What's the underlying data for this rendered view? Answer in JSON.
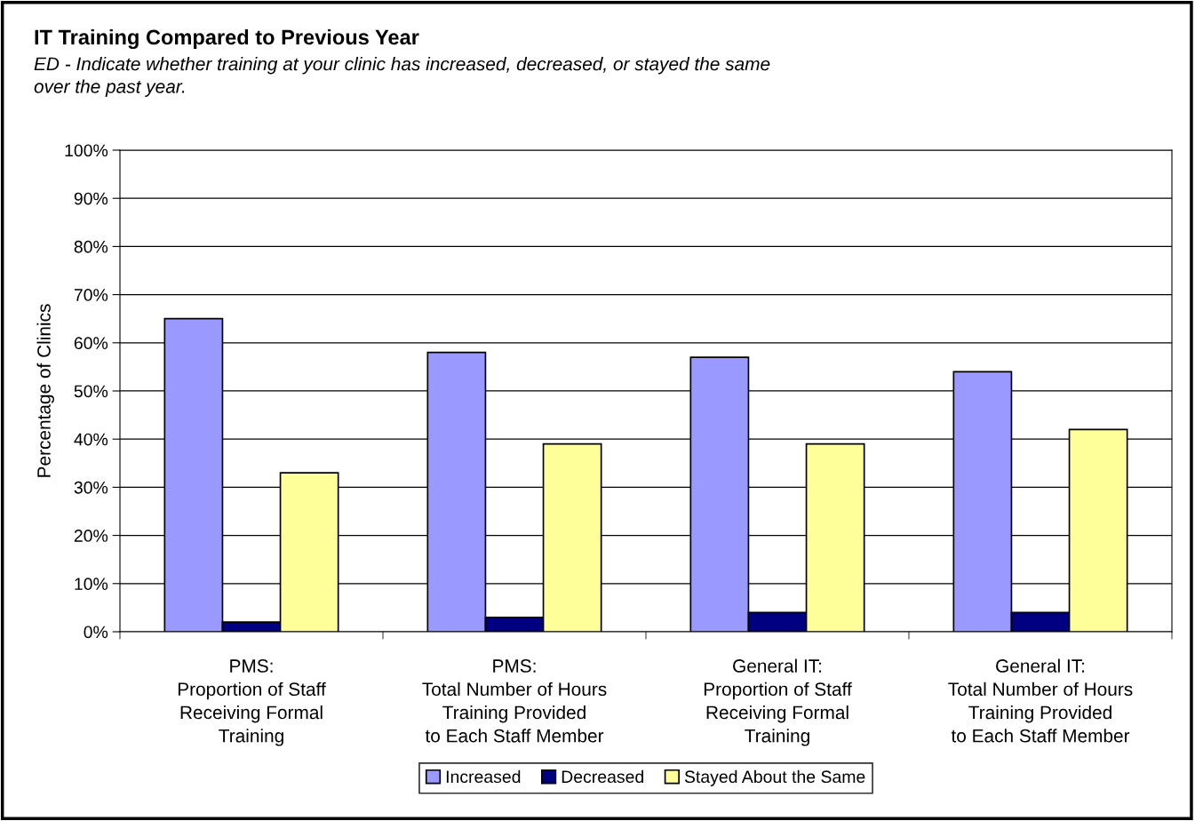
{
  "chart_data": {
    "type": "bar",
    "title": "IT Training Compared to Previous Year",
    "subtitle": "ED - Indicate whether training at your clinic has increased, decreased, or stayed the same\nover the past year.",
    "ylabel": "Percentage of Clinics",
    "categories": [
      "PMS:\nProportion of Staff\nReceiving Formal\nTraining",
      "PMS:\nTotal Number of Hours\nTraining Provided\nto Each Staff Member",
      "General IT:\nProportion of Staff\nReceiving Formal\nTraining",
      "General IT:\nTotal Number of Hours\nTraining Provided\nto Each Staff Member"
    ],
    "series": [
      {
        "name": "Increased",
        "color": "#9999ff",
        "values": [
          65,
          58,
          57,
          54
        ]
      },
      {
        "name": "Decreased",
        "color": "#000080",
        "values": [
          2,
          3,
          4,
          4
        ]
      },
      {
        "name": "Stayed About the Same",
        "color": "#ffff99",
        "values": [
          33,
          39,
          39,
          42
        ]
      }
    ],
    "ylim": [
      0,
      100
    ],
    "yticks": [
      {
        "value": 0,
        "label": "0%"
      },
      {
        "value": 10,
        "label": "10%"
      },
      {
        "value": 20,
        "label": "20%"
      },
      {
        "value": 30,
        "label": "30%"
      },
      {
        "value": 40,
        "label": "40%"
      },
      {
        "value": 50,
        "label": "50%"
      },
      {
        "value": 60,
        "label": "60%"
      },
      {
        "value": 70,
        "label": "70%"
      },
      {
        "value": 80,
        "label": "80%"
      },
      {
        "value": 90,
        "label": "90%"
      },
      {
        "value": 100,
        "label": "100%"
      }
    ],
    "grid": "y",
    "legend": "bottom"
  }
}
